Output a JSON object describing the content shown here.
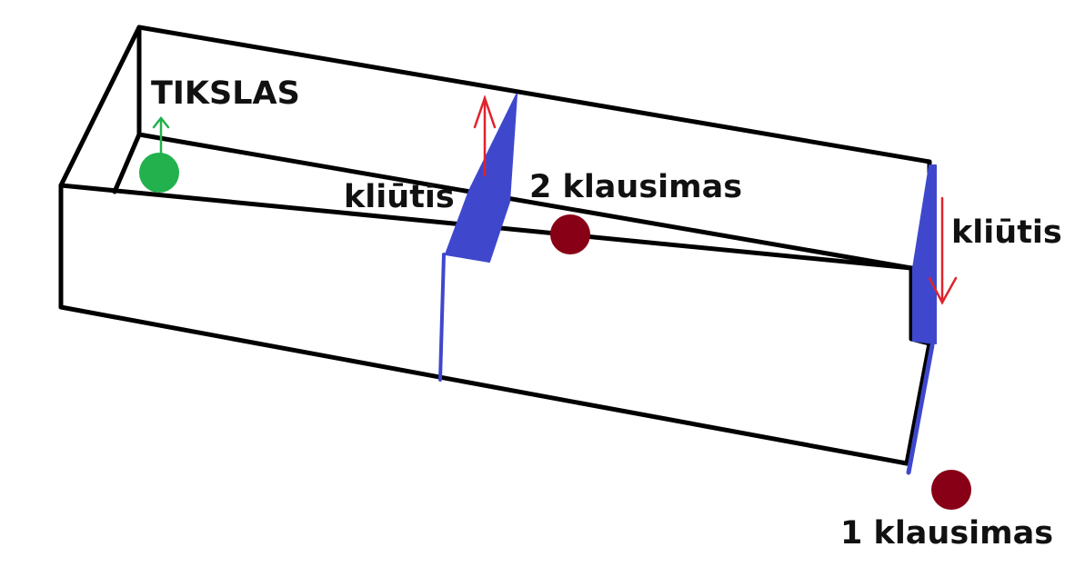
{
  "labels": {
    "goal": "TIKSLAS",
    "obstacle_middle": "kliūtis",
    "question_2": "2 klausimas",
    "obstacle_right": "kliūtis",
    "question_1": "1 klausimas"
  },
  "colors": {
    "outline": "#000000",
    "barrier": "#3f48cc",
    "arrow_up": "#e0232b",
    "arrow_down": "#e0232b",
    "goal_arrow": "#22b14c",
    "goal_ball": "#22b14c",
    "question_ball": "#880015",
    "text": "#111111"
  },
  "icons": {
    "goal": "green-ball-icon",
    "question": "dark-red-ball-icon",
    "barrier_motion_up": "red-up-arrow-icon",
    "barrier_motion_down": "red-down-arrow-icon"
  }
}
